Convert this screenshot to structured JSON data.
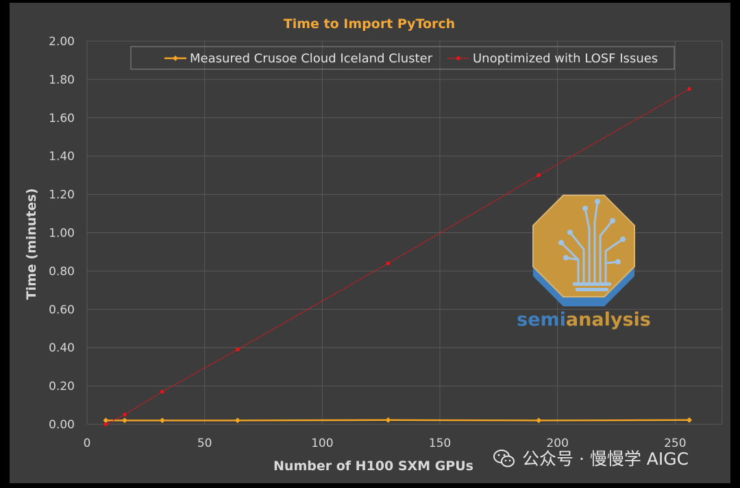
{
  "chart_data": {
    "type": "line",
    "title": "Time to Import PyTorch",
    "xlabel": "Number of H100 SXM GPUs",
    "ylabel": "Time (minutes)",
    "xlim": [
      0,
      270
    ],
    "ylim": [
      0,
      2.0
    ],
    "xticks": [
      0,
      50,
      100,
      150,
      200,
      250
    ],
    "yticks": [
      0,
      0.2,
      0.4,
      0.6,
      0.8,
      1.0,
      1.2,
      1.4,
      1.6,
      1.8,
      2.0
    ],
    "xtick_labels": [
      "0",
      "50",
      "100",
      "150",
      "200",
      "250"
    ],
    "ytick_labels": [
      "0.00",
      "0.20",
      "0.40",
      "0.60",
      "0.80",
      "1.00",
      "1.20",
      "1.40",
      "1.60",
      "1.80",
      "2.00"
    ],
    "grid": true,
    "legend_position": "top",
    "series": [
      {
        "name": "Measured Crusoe Cloud Iceland Cluster",
        "color": "#f5a623",
        "style": "solid",
        "marker": "diamond",
        "x": [
          8,
          16,
          32,
          64,
          128,
          192,
          256
        ],
        "y": [
          0.02,
          0.02,
          0.02,
          0.02,
          0.022,
          0.02,
          0.022
        ]
      },
      {
        "name": "Unoptimized with LOSF Issues",
        "color": "#e8141b",
        "style": "dotted",
        "marker": "circle",
        "x": [
          8,
          16,
          32,
          64,
          128,
          192,
          256
        ],
        "y": [
          0.0,
          0.05,
          0.17,
          0.39,
          0.84,
          1.3,
          1.75
        ]
      }
    ]
  },
  "logo": {
    "word_part1": "semi",
    "word_part2": "analysis",
    "colors": {
      "gold": "#c8963c",
      "blue": "#3f7fbd"
    }
  },
  "watermark": {
    "icon": "wechat-icon",
    "text": "公众号 · 慢慢学 AIGC"
  },
  "colors": {
    "background": "#3c3c3c",
    "grid": "#595959",
    "title": "#f3a93a"
  }
}
